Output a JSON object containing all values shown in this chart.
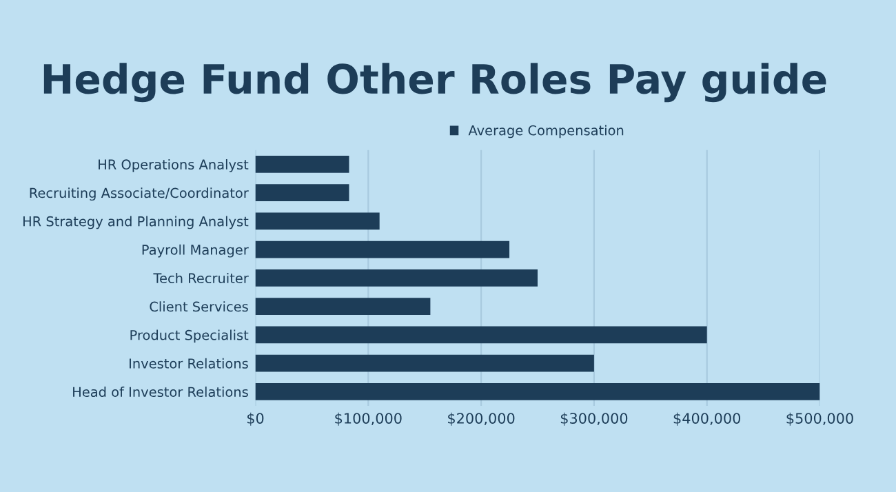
{
  "chart_data": {
    "type": "bar",
    "orientation": "horizontal",
    "title": "Hedge Fund Other Roles Pay guide",
    "categories": [
      "HR Operations Analyst",
      "Recruiting Associate/Coordinator",
      "HR Strategy and Planning Analyst",
      "Payroll Manager",
      "Tech Recruiter",
      "Client Services",
      "Product Specialist",
      "Investor Relations",
      "Head of Investor Relations"
    ],
    "series": [
      {
        "name": "Average Compensation",
        "color": "#1d3d58",
        "values": [
          83000,
          83000,
          110000,
          225000,
          250000,
          155000,
          400000,
          300000,
          500000
        ]
      }
    ],
    "xlim": [
      0,
      500000
    ],
    "xticks": [
      {
        "value": 0,
        "label": "$0"
      },
      {
        "value": 100000,
        "label": "$100,000"
      },
      {
        "value": 200000,
        "label": "$200,000"
      },
      {
        "value": 300000,
        "label": "$300,000"
      },
      {
        "value": 400000,
        "label": "$400,000"
      },
      {
        "value": 500000,
        "label": "$500,000"
      }
    ],
    "grid": "x",
    "legend": "top"
  }
}
